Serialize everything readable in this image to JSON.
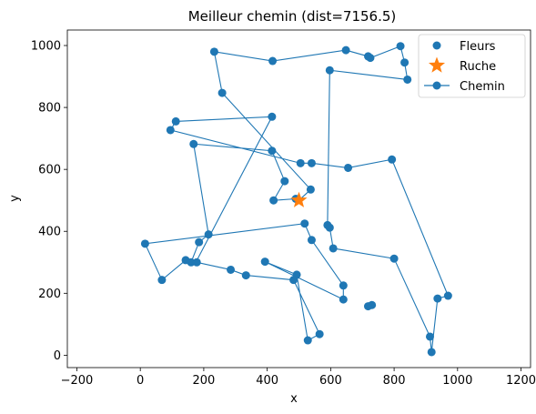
{
  "chart_data": {
    "type": "scatter",
    "title": "Meilleur chemin (dist=7156.5)",
    "xlabel": "x",
    "ylabel": "y",
    "xlim": [
      -230,
      1230
    ],
    "ylim": [
      -40,
      1050
    ],
    "xticks": [
      -200,
      0,
      200,
      400,
      600,
      800,
      1000,
      1200
    ],
    "yticks": [
      0,
      200,
      400,
      600,
      800,
      1000
    ],
    "grid": false,
    "legend_position": "top-right",
    "colors": {
      "points": "#1f77b4",
      "hive": "#ff7f0e",
      "path": "#1f77b4"
    },
    "legend": [
      {
        "label": "Fleurs",
        "marker": "circle"
      },
      {
        "label": "Ruche",
        "marker": "star"
      },
      {
        "label": "Chemin",
        "marker": "line-circle"
      }
    ],
    "hive": {
      "x": 500,
      "y": 500
    },
    "path": [
      [
        500,
        500
      ],
      [
        490,
        505
      ],
      [
        420,
        500
      ],
      [
        455,
        562
      ],
      [
        415,
        660
      ],
      [
        168,
        682
      ],
      [
        215,
        390
      ],
      [
        185,
        365
      ],
      [
        160,
        300
      ],
      [
        143,
        307
      ],
      [
        68,
        243
      ],
      [
        15,
        360
      ],
      [
        518,
        425
      ],
      [
        540,
        372
      ],
      [
        640,
        225
      ],
      [
        640,
        180
      ],
      [
        393,
        302
      ],
      [
        493,
        260
      ],
      [
        528,
        48
      ],
      [
        565,
        68
      ],
      [
        483,
        243
      ],
      [
        333,
        258
      ],
      [
        285,
        276
      ],
      [
        178,
        300
      ],
      [
        175,
        300
      ],
      [
        415,
        770
      ],
      [
        112,
        755
      ],
      [
        95,
        727
      ],
      [
        505,
        620
      ],
      [
        540,
        620
      ],
      [
        655,
        605
      ],
      [
        793,
        632
      ],
      [
        970,
        192
      ],
      [
        937,
        183
      ],
      [
        918,
        10
      ],
      [
        913,
        60
      ],
      [
        800,
        312
      ],
      [
        608,
        345
      ],
      [
        597,
        412
      ],
      [
        590,
        420
      ],
      [
        597,
        920
      ],
      [
        842,
        890
      ],
      [
        833,
        945
      ],
      [
        820,
        998
      ],
      [
        725,
        960
      ],
      [
        718,
        965
      ],
      [
        648,
        985
      ],
      [
        417,
        950
      ],
      [
        233,
        980
      ],
      [
        258,
        847
      ],
      [
        537,
        535
      ],
      [
        500,
        500
      ]
    ],
    "points": [
      [
        490,
        505
      ],
      [
        420,
        500
      ],
      [
        455,
        562
      ],
      [
        415,
        660
      ],
      [
        168,
        682
      ],
      [
        215,
        390
      ],
      [
        185,
        365
      ],
      [
        160,
        300
      ],
      [
        143,
        307
      ],
      [
        68,
        243
      ],
      [
        15,
        360
      ],
      [
        518,
        425
      ],
      [
        540,
        372
      ],
      [
        640,
        225
      ],
      [
        640,
        180
      ],
      [
        393,
        302
      ],
      [
        493,
        260
      ],
      [
        528,
        48
      ],
      [
        565,
        68
      ],
      [
        483,
        243
      ],
      [
        333,
        258
      ],
      [
        285,
        276
      ],
      [
        178,
        300
      ],
      [
        415,
        770
      ],
      [
        112,
        755
      ],
      [
        95,
        727
      ],
      [
        505,
        620
      ],
      [
        540,
        620
      ],
      [
        655,
        605
      ],
      [
        793,
        632
      ],
      [
        970,
        192
      ],
      [
        937,
        183
      ],
      [
        918,
        10
      ],
      [
        913,
        60
      ],
      [
        800,
        312
      ],
      [
        608,
        345
      ],
      [
        597,
        412
      ],
      [
        590,
        420
      ],
      [
        597,
        920
      ],
      [
        842,
        890
      ],
      [
        833,
        945
      ],
      [
        820,
        998
      ],
      [
        725,
        960
      ],
      [
        718,
        965
      ],
      [
        648,
        985
      ],
      [
        417,
        950
      ],
      [
        233,
        980
      ],
      [
        258,
        847
      ],
      [
        537,
        535
      ],
      [
        730,
        162
      ],
      [
        718,
        158
      ]
    ]
  }
}
